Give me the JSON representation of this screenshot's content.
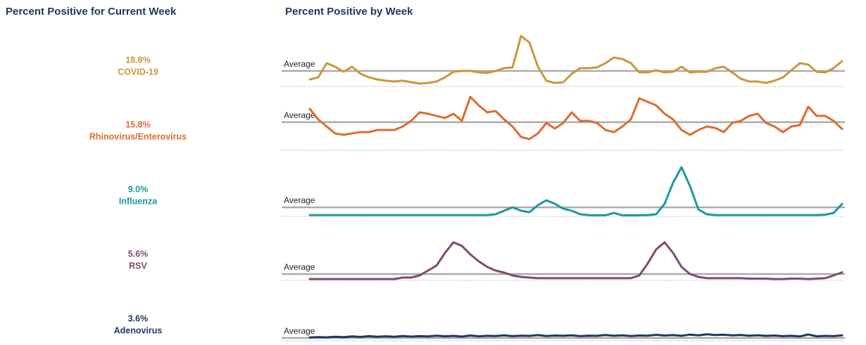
{
  "left_title": "Percent Positive for Current Week",
  "right_title": "Percent Positive by Week",
  "chart_data": [
    {
      "type": "line",
      "name": "COVID-19",
      "color": "#c9973a",
      "current": 18.8,
      "current_label": "18.8%",
      "average_label": "Average",
      "average": 11.3,
      "ylim": [
        0,
        44
      ],
      "values": [
        4.8,
        6.4,
        17.2,
        14.5,
        10.7,
        14.5,
        9.1,
        6.4,
        4.8,
        3.8,
        3.2,
        3.8,
        2.7,
        1.6,
        2.1,
        3.2,
        6.4,
        10.7,
        11.3,
        11.3,
        10.2,
        9.7,
        11.3,
        13.4,
        14.0,
        38.0,
        33.0,
        14.5,
        3.8,
        2.1,
        2.7,
        9.1,
        13.4,
        13.4,
        14.0,
        17.2,
        21.5,
        20.4,
        17.2,
        10.2,
        10.2,
        11.8,
        10.2,
        10.7,
        14.5,
        10.2,
        10.7,
        10.7,
        13.4,
        14.5,
        10.2,
        5.4,
        3.2,
        3.2,
        2.1,
        3.8,
        6.4,
        11.8,
        17.2,
        16.1,
        10.7,
        10.2,
        13.4,
        18.8
      ]
    },
    {
      "type": "line",
      "name": "Rhinovirus/Enterovirus",
      "color": "#e06a2c",
      "current": 15.8,
      "current_label": "15.8%",
      "average_label": "Average",
      "average": 21.0,
      "ylim": [
        0,
        44
      ],
      "values": [
        31.1,
        23.1,
        17.7,
        12.4,
        11.3,
        12.4,
        13.4,
        13.4,
        15.0,
        15.0,
        15.0,
        17.7,
        22.0,
        28.5,
        27.4,
        25.8,
        24.2,
        27.4,
        22.0,
        40.3,
        33.8,
        28.5,
        29.5,
        23.1,
        17.7,
        9.7,
        8.1,
        12.4,
        20.4,
        16.1,
        20.4,
        28.5,
        22.0,
        22.0,
        20.4,
        15.0,
        13.4,
        17.7,
        23.1,
        39.2,
        36.5,
        33.8,
        27.4,
        23.1,
        15.0,
        11.3,
        15.0,
        17.7,
        16.6,
        13.4,
        20.4,
        22.0,
        25.8,
        27.4,
        20.4,
        17.7,
        13.4,
        17.7,
        18.8,
        32.8,
        25.8,
        25.8,
        22.0,
        15.8
      ]
    },
    {
      "type": "line",
      "name": "Influenza",
      "color": "#1a9a9a",
      "current": 9.0,
      "current_label": "9.0%",
      "average_label": "Average",
      "average": 6.4,
      "ylim": [
        0,
        44
      ],
      "values": [
        0.5,
        0.5,
        0.5,
        0.5,
        0.5,
        0.5,
        0.5,
        0.5,
        0.5,
        0.5,
        0.5,
        0.5,
        0.5,
        0.5,
        0.5,
        0.5,
        0.5,
        0.5,
        0.5,
        0.5,
        0.5,
        0.5,
        1.1,
        3.8,
        6.4,
        3.8,
        2.7,
        8.1,
        11.8,
        9.1,
        5.4,
        3.8,
        1.1,
        0.5,
        0.3,
        0.3,
        2.1,
        0.3,
        0.3,
        0.3,
        0.5,
        1.1,
        9.1,
        25.2,
        37.0,
        22.6,
        4.8,
        1.1,
        0.5,
        0.5,
        0.5,
        0.5,
        0.5,
        0.5,
        0.5,
        0.5,
        0.5,
        0.5,
        0.5,
        0.5,
        0.5,
        0.8,
        2.1,
        9.0
      ]
    },
    {
      "type": "line",
      "name": "RSV",
      "color": "#7d4a73",
      "current": 5.6,
      "current_label": "5.6%",
      "average_label": "Average",
      "average": 4.3,
      "ylim": [
        0,
        44
      ],
      "values": [
        0.5,
        0.5,
        0.5,
        0.5,
        0.5,
        0.5,
        0.5,
        0.5,
        0.5,
        0.5,
        0.5,
        1.6,
        1.6,
        3.2,
        7.0,
        10.7,
        20.4,
        28.5,
        25.8,
        19.3,
        14.0,
        9.7,
        7.0,
        5.4,
        3.2,
        2.1,
        1.6,
        1.1,
        1.1,
        1.1,
        1.1,
        1.1,
        1.1,
        1.1,
        1.1,
        1.1,
        1.1,
        1.1,
        1.1,
        3.2,
        12.4,
        23.1,
        28.5,
        20.4,
        9.7,
        4.3,
        2.1,
        1.1,
        1.1,
        1.1,
        1.1,
        1.1,
        0.8,
        0.8,
        0.8,
        0.5,
        0.5,
        0.8,
        0.8,
        0.5,
        0.8,
        1.1,
        3.2,
        5.6
      ]
    },
    {
      "type": "line",
      "name": "Adenovirus",
      "color": "#1f3864",
      "current": 3.6,
      "current_label": "3.6%",
      "average_label": "Average",
      "average": 1.6,
      "ylim": [
        0,
        44
      ],
      "values": [
        2.0,
        2.3,
        2.1,
        2.6,
        2.2,
        2.8,
        2.4,
        3.0,
        2.6,
        2.9,
        2.5,
        3.1,
        2.7,
        3.0,
        2.8,
        3.4,
        2.9,
        3.2,
        2.7,
        3.5,
        2.9,
        3.3,
        3.1,
        3.6,
        3.0,
        3.4,
        3.2,
        3.8,
        3.1,
        3.5,
        3.3,
        3.6,
        3.0,
        3.4,
        3.2,
        3.9,
        3.3,
        3.6,
        3.1,
        3.5,
        3.4,
        4.0,
        3.5,
        3.8,
        3.3,
        4.2,
        3.6,
        4.4,
        3.9,
        4.1,
        3.6,
        3.9,
        3.4,
        3.7,
        3.2,
        3.5,
        3.0,
        3.3,
        2.8,
        4.3,
        2.9,
        3.2,
        3.0,
        3.6
      ]
    }
  ]
}
